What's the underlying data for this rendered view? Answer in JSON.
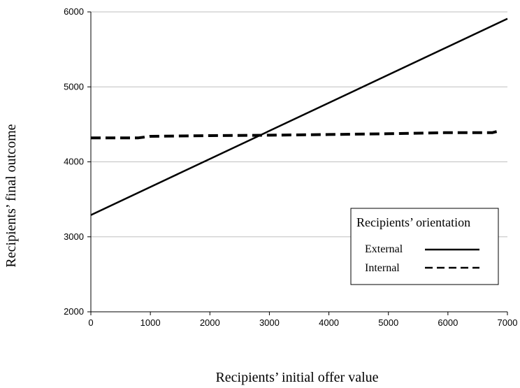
{
  "chart_data": {
    "type": "line",
    "xlabel": "Recipients’ initial offer value",
    "ylabel": "Recipients’ final outcome",
    "xlim": [
      0,
      7000
    ],
    "ylim": [
      2000,
      6000
    ],
    "x_ticks": [
      0,
      1000,
      2000,
      3000,
      4000,
      5000,
      6000,
      7000
    ],
    "y_ticks": [
      2000,
      3000,
      4000,
      5000,
      6000
    ],
    "x_tick_labels": [
      "0",
      "1000",
      "2000",
      "3000",
      "4000",
      "5000",
      "6000",
      "7000"
    ],
    "y_tick_labels": [
      "2000",
      "3000",
      "4000",
      "5000",
      "6000"
    ],
    "grid": "horizontal",
    "legend": {
      "title": "Recipients’ orientation",
      "position": "right"
    },
    "series": [
      {
        "name": "External",
        "style": "solid",
        "x": [
          0,
          7000
        ],
        "y": [
          3290,
          5910
        ]
      },
      {
        "name": "Internal",
        "style": "dashed",
        "x": [
          0,
          800,
          1000,
          2000,
          3000,
          4000,
          5000,
          6000,
          6750,
          6850
        ],
        "y": [
          4320,
          4320,
          4340,
          4350,
          4355,
          4365,
          4375,
          4390,
          4390,
          4410
        ]
      }
    ]
  }
}
